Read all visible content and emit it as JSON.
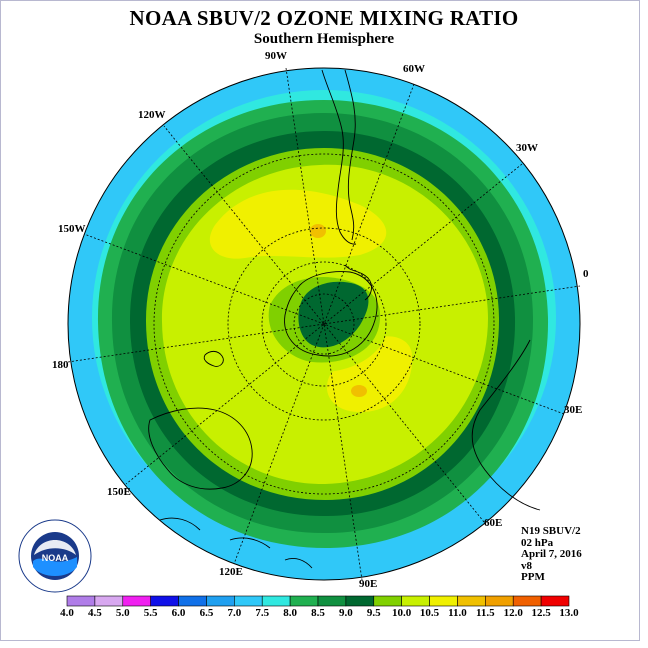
{
  "title": "NOAA SBUV/2 OZONE MIXING RATIO",
  "subtitle": "Southern Hemisphere",
  "longitude_labels": {
    "w90": "90W",
    "w60": "60W",
    "w30": "30W",
    "w120": "120W",
    "w150": "150W",
    "e0": "0",
    "e180": "180",
    "e30": "30E",
    "e150": "150E",
    "e60": "60E",
    "e120": "120E",
    "e90": "90E"
  },
  "info": {
    "instrument": "N19 SBUV/2",
    "level": "02 hPa",
    "date": "April 7, 2016",
    "version": "v8",
    "units": "PPM"
  },
  "logo_text": "NOAA",
  "colorbar": {
    "ticks": [
      "4.0",
      "4.5",
      "5.0",
      "5.5",
      "6.0",
      "6.5",
      "7.0",
      "7.5",
      "8.0",
      "8.5",
      "9.0",
      "9.5",
      "10.0",
      "10.5",
      "11.0",
      "11.5",
      "12.0",
      "12.5",
      "13.0"
    ],
    "colors": [
      "#b07de8",
      "#d8a8f0",
      "#f020f0",
      "#1010e8",
      "#1070e8",
      "#20a0f0",
      "#30c8f8",
      "#30e8e0",
      "#20b050",
      "#109040",
      "#006830",
      "#80d000",
      "#c8f000",
      "#f0f000",
      "#f0c000",
      "#f0a000",
      "#f06000",
      "#f00000",
      "#906040"
    ]
  },
  "chart_data": {
    "type": "polar-contour-map",
    "projection": "south polar stereographic",
    "field": "ozone mixing ratio",
    "units": "PPM",
    "pressure_level_hPa": 2,
    "date": "April 7, 2016",
    "contour_levels": [
      4.0,
      4.5,
      5.0,
      5.5,
      6.0,
      6.5,
      7.0,
      7.5,
      8.0,
      8.5,
      9.0,
      9.5,
      10.0,
      10.5,
      11.0,
      11.5,
      12.0,
      12.5,
      13.0
    ],
    "regions": [
      {
        "band": "6.5-7.0",
        "location": "outer edge near equator"
      },
      {
        "band": "7.0-7.5",
        "location": "tropics ring"
      },
      {
        "band": "7.5-8.0",
        "location": "subtropics ring"
      },
      {
        "band": "8.0-8.5",
        "location": "mid-latitude ring"
      },
      {
        "band": "8.5-9.0",
        "location": "mid-latitude ring"
      },
      {
        "band": "9.0-9.5",
        "location": "mid-latitude ring"
      },
      {
        "band": "9.5-10.0",
        "location": "high-latitude ring"
      },
      {
        "band": "10.0-10.5",
        "location": "high-latitude ring"
      },
      {
        "band": "10.5-11.0",
        "location": "patches near 60W and 60E"
      },
      {
        "band": "11.0-11.5",
        "location": "small maxima near 60W and 60E"
      },
      {
        "band": "9.0-9.5",
        "location": "polar minimum centered near South Pole"
      }
    ]
  }
}
